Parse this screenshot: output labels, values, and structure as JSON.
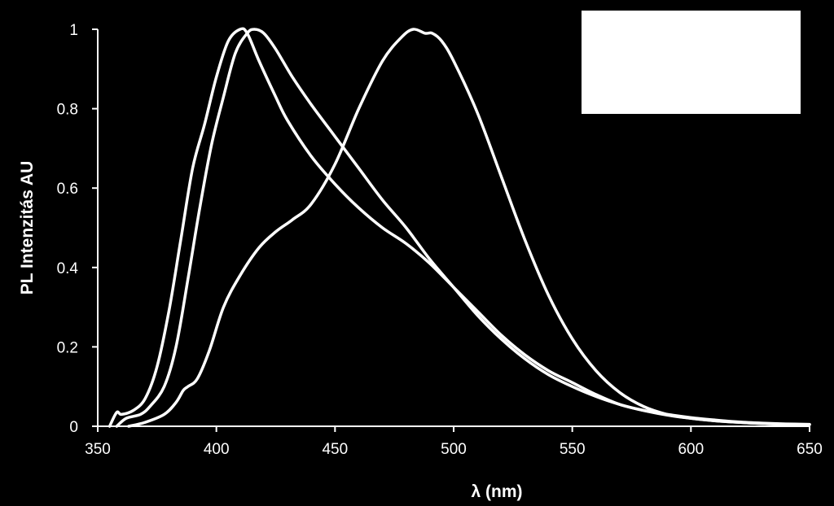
{
  "chart_data": {
    "type": "line",
    "title": "",
    "xlabel": "λ (nm)",
    "ylabel": "PL Intenzitás AU",
    "xlim": [
      350,
      650
    ],
    "ylim": [
      0,
      1
    ],
    "xticks": [
      "350",
      "400",
      "450",
      "500",
      "550",
      "600",
      "650"
    ],
    "yticks": [
      "0",
      "0.2",
      "0.4",
      "0.6",
      "0.8",
      "1"
    ],
    "grid": false,
    "legend": "top-right (blank white box)",
    "colors": {
      "background": "#000000",
      "lines": "#ffffff",
      "text": "#ffffff",
      "legend_box": "#ffffff"
    },
    "series": [
      {
        "x": [
          355,
          358,
          360,
          365,
          370,
          375,
          380,
          385,
          390,
          395,
          400,
          405,
          410,
          413,
          418,
          425,
          430,
          440,
          450,
          460,
          470,
          480,
          490,
          500,
          510,
          520,
          530,
          540,
          550,
          560,
          570,
          580,
          590,
          600,
          610,
          620,
          630,
          640,
          650
        ],
        "y": [
          0,
          0.035,
          0.03,
          0.04,
          0.07,
          0.15,
          0.29,
          0.47,
          0.65,
          0.76,
          0.88,
          0.97,
          1.0,
          0.99,
          0.92,
          0.83,
          0.77,
          0.68,
          0.61,
          0.55,
          0.5,
          0.46,
          0.41,
          0.35,
          0.29,
          0.23,
          0.18,
          0.14,
          0.11,
          0.08,
          0.055,
          0.04,
          0.028,
          0.02,
          0.014,
          0.01,
          0.007,
          0.005,
          0.004
        ]
      },
      {
        "x": [
          358,
          362,
          368,
          372,
          378,
          383,
          388,
          393,
          398,
          403,
          408,
          413,
          416,
          420,
          425,
          432,
          440,
          450,
          460,
          470,
          480,
          490,
          500,
          510,
          520,
          530,
          540,
          550,
          560,
          570,
          580,
          590,
          600,
          610,
          620,
          630,
          640,
          650
        ],
        "y": [
          0,
          0.02,
          0.03,
          0.05,
          0.1,
          0.2,
          0.37,
          0.55,
          0.71,
          0.83,
          0.94,
          0.99,
          1.0,
          0.99,
          0.95,
          0.88,
          0.81,
          0.73,
          0.65,
          0.57,
          0.5,
          0.42,
          0.35,
          0.28,
          0.22,
          0.17,
          0.13,
          0.1,
          0.075,
          0.055,
          0.04,
          0.03,
          0.022,
          0.016,
          0.011,
          0.008,
          0.006,
          0.005
        ]
      },
      {
        "x": [
          363,
          370,
          378,
          383,
          386,
          388,
          392,
          397,
          403,
          410,
          418,
          425,
          432,
          440,
          450,
          460,
          470,
          478,
          483,
          488,
          491,
          495,
          500,
          510,
          520,
          530,
          540,
          550,
          560,
          570,
          580,
          590,
          600,
          610,
          620,
          630,
          640,
          650
        ],
        "y": [
          0,
          0.01,
          0.03,
          0.06,
          0.09,
          0.1,
          0.12,
          0.19,
          0.3,
          0.38,
          0.45,
          0.49,
          0.52,
          0.56,
          0.66,
          0.8,
          0.92,
          0.98,
          1.0,
          0.99,
          0.99,
          0.97,
          0.92,
          0.79,
          0.63,
          0.47,
          0.33,
          0.22,
          0.14,
          0.085,
          0.05,
          0.03,
          0.02,
          0.014,
          0.01,
          0.007,
          0.005,
          0.004
        ]
      }
    ]
  }
}
